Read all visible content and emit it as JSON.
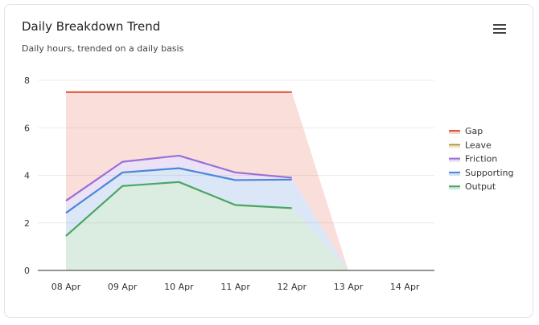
{
  "header": {
    "title": "Daily Breakdown Trend",
    "subtitle": "Daily hours, trended on a daily basis",
    "menu_icon": "hamburger-icon"
  },
  "chart_data": {
    "type": "area",
    "stacked": true,
    "title": "Daily Breakdown Trend",
    "subtitle": "Daily hours, trended on a daily basis",
    "categories": [
      "08 Apr",
      "09 Apr",
      "10 Apr",
      "11 Apr",
      "12 Apr",
      "13 Apr",
      "14 Apr"
    ],
    "yticks": [
      0,
      2,
      4,
      6,
      8
    ],
    "ylim": [
      0,
      8
    ],
    "legend_position": "right",
    "grid": true,
    "series": [
      {
        "name": "Output",
        "color": "#4aa564",
        "values": [
          1.45,
          3.55,
          3.72,
          2.75,
          2.62,
          0,
          null
        ]
      },
      {
        "name": "Supporting",
        "color": "#4a87d8",
        "values": [
          0.97,
          0.57,
          0.58,
          1.05,
          1.2,
          0,
          null
        ]
      },
      {
        "name": "Friction",
        "color": "#9a6fd6",
        "values": [
          0.51,
          0.45,
          0.53,
          0.32,
          0.08,
          0,
          null
        ]
      },
      {
        "name": "Leave",
        "color": "#b59a3c",
        "values": [
          0,
          0,
          0,
          0,
          0,
          0,
          null
        ]
      },
      {
        "name": "Gap",
        "color": "#e0583f",
        "values": [
          4.57,
          2.93,
          2.67,
          3.38,
          3.6,
          0,
          null
        ]
      }
    ],
    "legend_order": [
      "Gap",
      "Leave",
      "Friction",
      "Supporting",
      "Output"
    ]
  }
}
